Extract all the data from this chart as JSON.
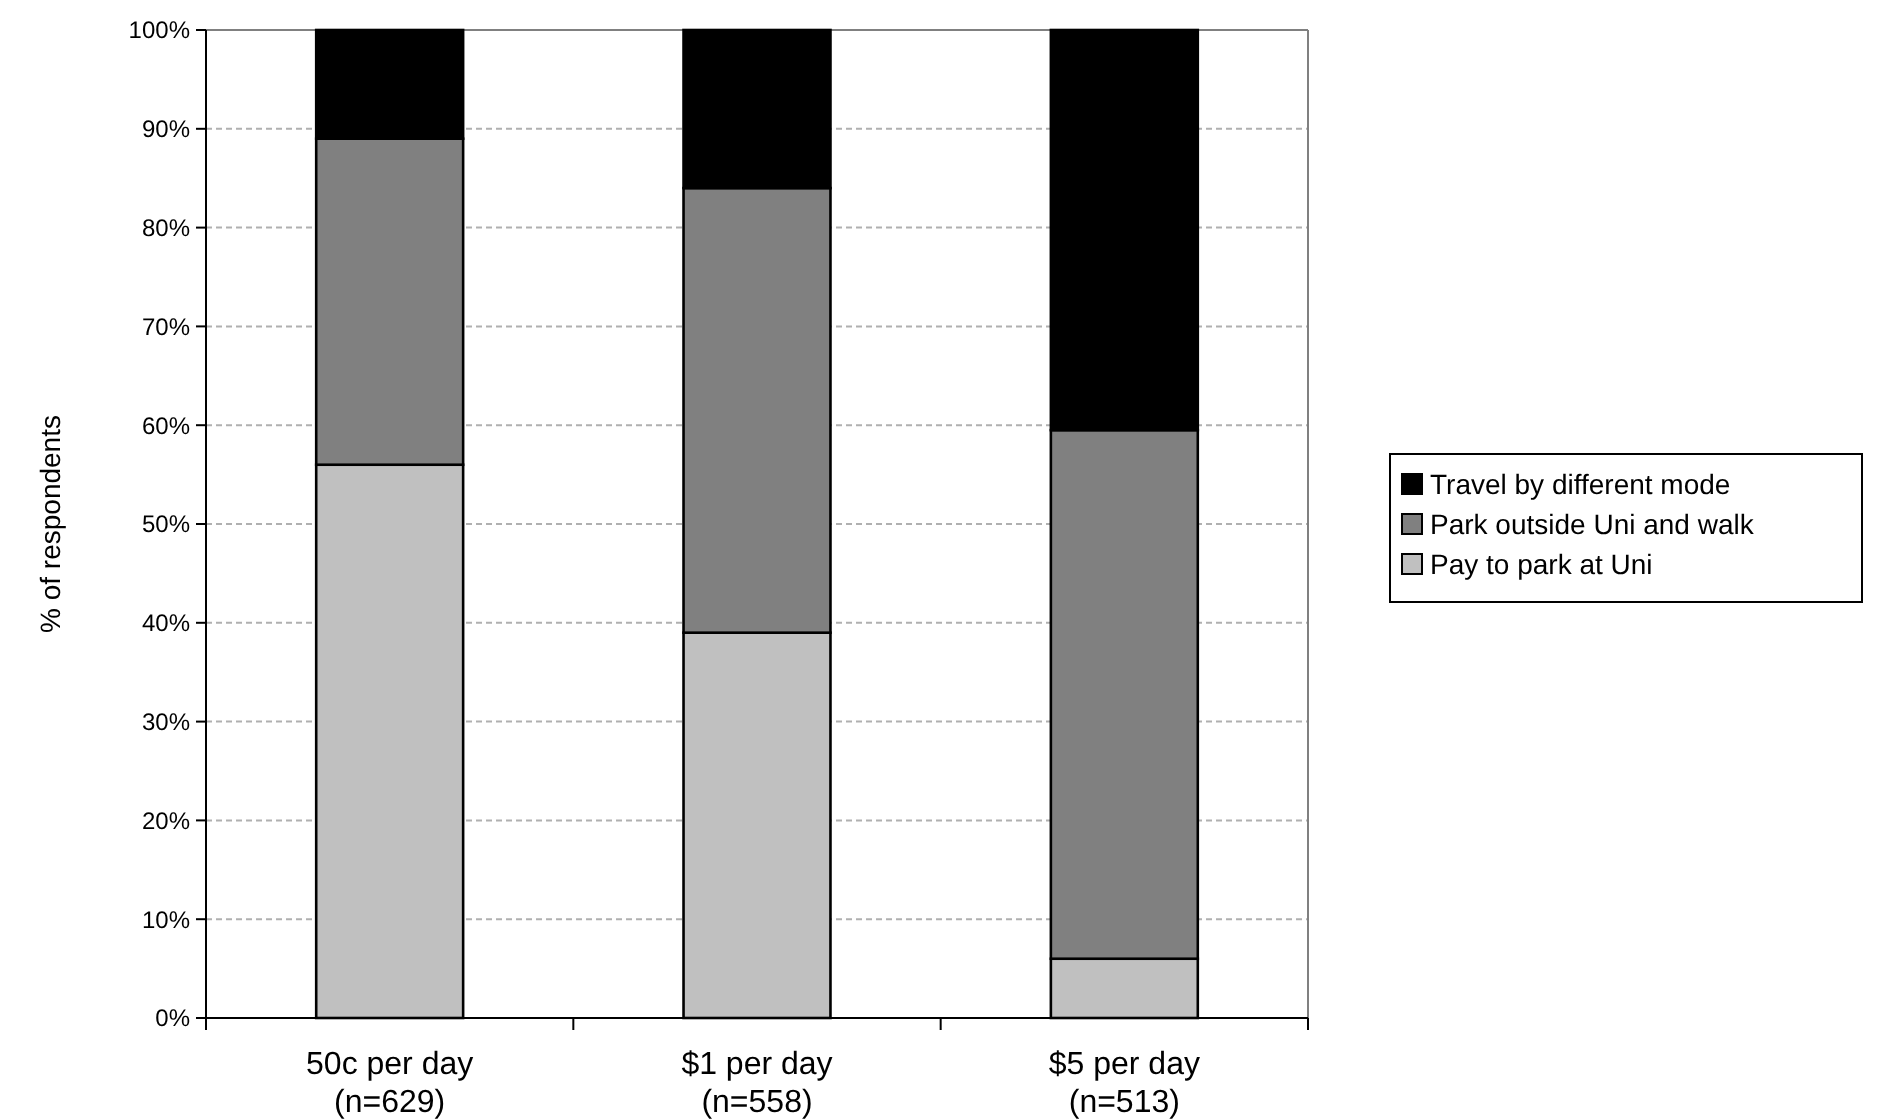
{
  "chart_data": {
    "type": "bar",
    "stacked": true,
    "ylabel": "% of respondents",
    "categories": [
      "50c per day\n(n=629)",
      "$1 per day\n(n=558)",
      "$5 per day\n(n=513)"
    ],
    "series": [
      {
        "name": "Pay to park at Uni",
        "color": "#c0c0c0",
        "values": [
          56,
          39,
          6
        ]
      },
      {
        "name": "Park outside Uni and walk",
        "color": "#808080",
        "values": [
          33,
          45,
          53.5
        ]
      },
      {
        "name": "Travel by different mode",
        "color": "#000000",
        "values": [
          11,
          16,
          40.5
        ]
      }
    ],
    "ylim": [
      0,
      100
    ],
    "yticks": [
      {
        "value": 0,
        "label": "0%"
      },
      {
        "value": 10,
        "label": "10%"
      },
      {
        "value": 20,
        "label": "20%"
      },
      {
        "value": 30,
        "label": "30%"
      },
      {
        "value": 40,
        "label": "40%"
      },
      {
        "value": 50,
        "label": "50%"
      },
      {
        "value": 60,
        "label": "60%"
      },
      {
        "value": 70,
        "label": "70%"
      },
      {
        "value": 80,
        "label": "80%"
      },
      {
        "value": 90,
        "label": "90%"
      },
      {
        "value": 100,
        "label": "100%"
      }
    ],
    "grid": "y",
    "legend": "right"
  }
}
